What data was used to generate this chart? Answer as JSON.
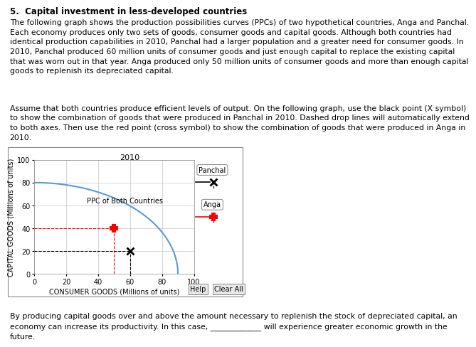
{
  "title_main": "5.  Capital investment in less-developed countries",
  "chart_title_year": "2010",
  "ylabel": "CAPITAL GOODS (Millions of units)",
  "xlabel": "CONSUMER GOODS (Millions of units)",
  "xlim": [
    0,
    100
  ],
  "ylim": [
    0,
    100
  ],
  "xticks": [
    0,
    20,
    40,
    60,
    80,
    100
  ],
  "yticks": [
    0,
    20,
    40,
    60,
    80,
    100
  ],
  "ppc_color": "#5b9bd5",
  "ppc_label": "PPC of Both Countries",
  "panchal_x": 60,
  "panchal_y": 20,
  "anga_x": 50,
  "anga_y": 40,
  "panchal_color": "black",
  "anga_color": "red",
  "dropline_style": "--",
  "background_color": "#ffffff",
  "plot_bg_color": "#ffffff",
  "grid_color": "#c8c8c8",
  "font_size_axis_label": 7,
  "font_size_tick": 7,
  "font_size_ppc_label": 7,
  "help_button": "Help",
  "clear_button": "Clear All",
  "legend_panchal": "Panchal",
  "legend_anga": "Anga",
  "body_text": "The following graph shows the production possibilities curves (PPCs) of two hypothetical countries, Anga and Panchal.\nEach economy produces only two sets of goods, consumer goods and capital goods. Although both countries had\nidentical production capabilities in 2010, Panchal had a larger population and a greater need for consumer goods. In\n2010, Panchal produced 60 million units of consumer goods and just enough capital to replace the existing capital\nthat was worn out in that year. Anga produced only 50 million units of consumer goods and more than enough capital\ngoods to replenish its depreciated capital.",
  "assume_text": "Assume that both countries produce efficient levels of output. On the following graph, use the black point (X symbol)\nto show the combination of goods that were produced in Panchal in 2010. Dashed drop lines will automatically extend\nto both axes. Then use the red point (cross symbol) to show the combination of goods that were produced in Anga in\n2010.",
  "bottom_text": "By producing capital goods over and above the amount necessary to replenish the stock of depreciated capital, an\neconomy can increase its productivity. In this case, _____________ will experience greater economic growth in the\nfuture."
}
